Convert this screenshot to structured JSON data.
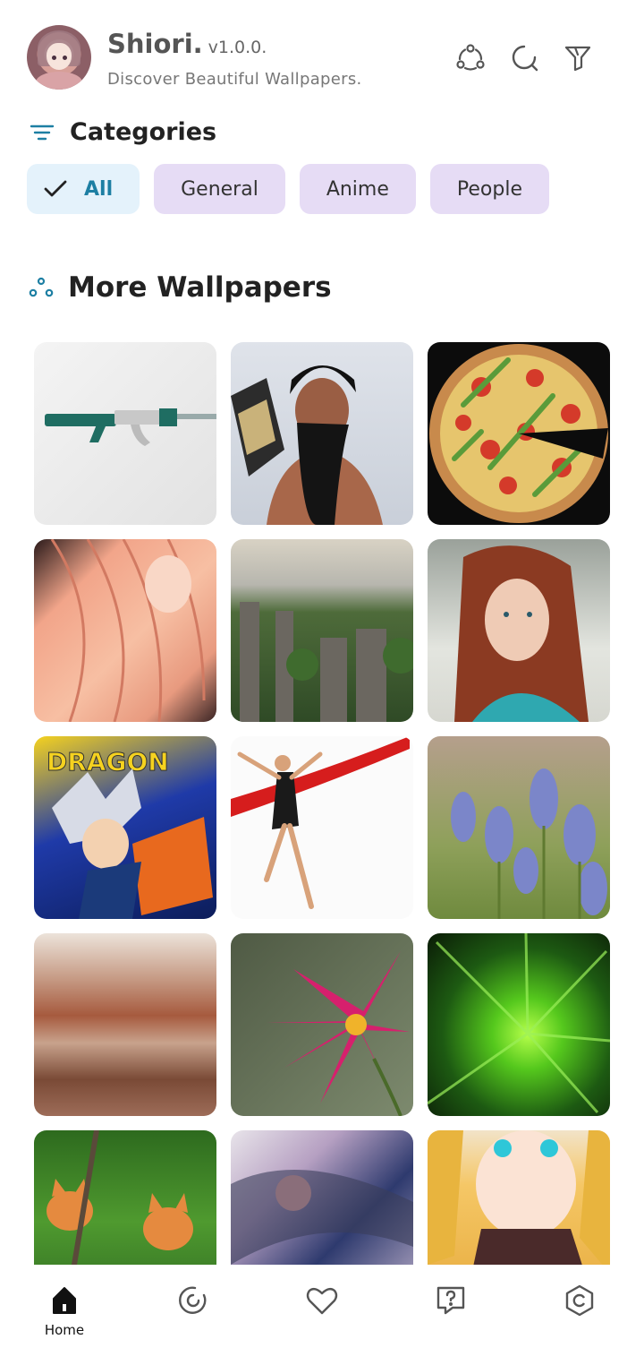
{
  "header": {
    "app_name": "Shiori.",
    "version": "v1.0.0.",
    "subtitle": "Discover Beautiful Wallpapers.",
    "icons": [
      "share-icon",
      "refresh-icon",
      "filter-icon"
    ]
  },
  "categories": {
    "title": "Categories",
    "chips": [
      {
        "label": "All",
        "selected": true
      },
      {
        "label": "General",
        "selected": false
      },
      {
        "label": "Anime",
        "selected": false
      },
      {
        "label": "People",
        "selected": false
      }
    ]
  },
  "wallpapers": {
    "title": "More Wallpapers",
    "items": [
      "rifle",
      "wrestler",
      "pizza",
      "anime-hair",
      "rock-forest",
      "redhead-woman",
      "dragon-ball",
      "dancer-ribbon",
      "blue-flowers",
      "blurred-landscape",
      "pink-flower",
      "green-burst",
      "kittens",
      "abstract-art",
      "anime-girl"
    ]
  },
  "bottom_nav": {
    "items": [
      {
        "label": "Home",
        "icon": "home-icon",
        "active": true
      },
      {
        "label": "",
        "icon": "explore-icon",
        "active": false
      },
      {
        "label": "",
        "icon": "heart-icon",
        "active": false
      },
      {
        "label": "",
        "icon": "help-icon",
        "active": false
      },
      {
        "label": "",
        "icon": "settings-icon",
        "active": false
      }
    ]
  },
  "colors": {
    "accent": "#1d7fa3",
    "chip_bg": "#e6dcf5",
    "chip_selected_bg": "#e4f2fb"
  }
}
